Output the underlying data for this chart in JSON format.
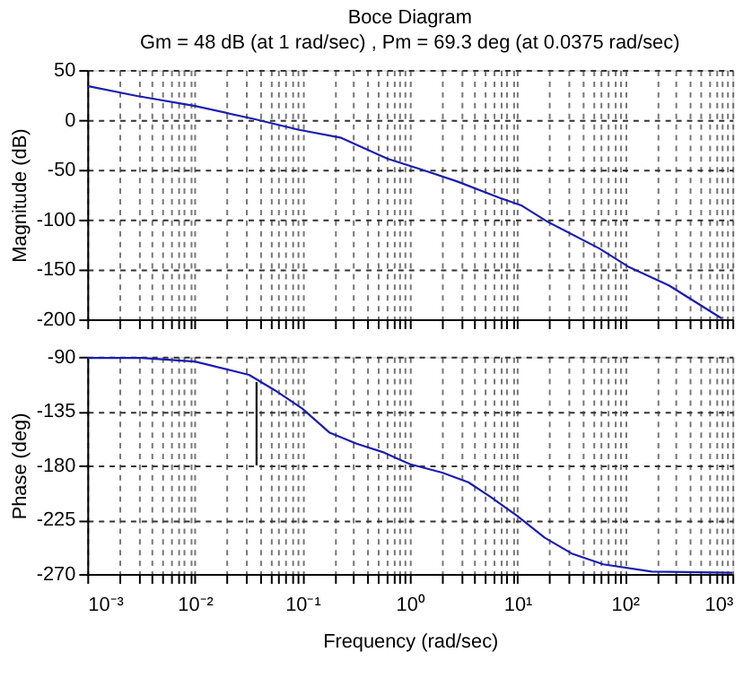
{
  "chart_data": [
    {
      "type": "line",
      "title": "Boce Diagram",
      "subtitle": "Gm = 48 dB (at 1 rad/sec) , Pm = 69.3 deg (at 0.0375 rad/sec)",
      "ylabel": "Magnitude (dB)",
      "log": "x",
      "grid": true,
      "tick_labels": "y",
      "xlim": [
        0.001,
        1000
      ],
      "xticks": [
        0.001,
        0.002,
        0.003,
        0.004,
        0.005,
        0.006,
        0.007,
        0.008,
        0.009,
        0.01,
        0.02,
        0.03,
        0.04,
        0.05,
        0.06,
        0.07,
        0.08,
        0.09,
        0.1,
        0.2,
        0.3,
        0.4,
        0.5,
        0.6,
        0.7,
        0.8,
        0.9,
        1,
        2,
        3,
        4,
        5,
        6,
        7,
        8,
        9,
        10,
        20,
        30,
        40,
        50,
        60,
        70,
        80,
        90,
        100,
        200,
        300,
        400,
        500,
        600,
        700,
        800,
        900,
        1000
      ],
      "ylim": [
        -200,
        50
      ],
      "yticks": [
        -200,
        -150,
        -100,
        -50,
        0,
        50
      ],
      "series": [
        {
          "color": "#1c1cb0",
          "x": [
            0.001,
            0.0029,
            0.01,
            0.035,
            0.093,
            0.23,
            0.62,
            1.3,
            2.8,
            6.8,
            11,
            19,
            58,
            107,
            257,
            794
          ],
          "values": [
            34,
            24,
            14,
            1,
            -10,
            -18,
            -39,
            -50,
            -62,
            -78,
            -86,
            -102,
            -129,
            -147,
            -166,
            -199
          ]
        }
      ]
    },
    {
      "type": "line",
      "xlabel": "Frequency  (rad/sec)",
      "ylabel": "Phase (deg)",
      "log": "x",
      "grid": true,
      "xlim": [
        0.001,
        1000
      ],
      "xticks": [
        {
          "value": 0.001,
          "label": "10⁻³"
        },
        {
          "value": 0.002,
          "label": null
        },
        {
          "value": 0.003,
          "label": null
        },
        {
          "value": 0.004,
          "label": null
        },
        {
          "value": 0.005,
          "label": null
        },
        {
          "value": 0.006,
          "label": null
        },
        {
          "value": 0.007,
          "label": null
        },
        {
          "value": 0.008,
          "label": null
        },
        {
          "value": 0.009,
          "label": null
        },
        {
          "value": 0.01,
          "label": "10⁻²"
        },
        {
          "value": 0.02,
          "label": null
        },
        {
          "value": 0.03,
          "label": null
        },
        {
          "value": 0.04,
          "label": null
        },
        {
          "value": 0.05,
          "label": null
        },
        {
          "value": 0.06,
          "label": null
        },
        {
          "value": 0.07,
          "label": null
        },
        {
          "value": 0.08,
          "label": null
        },
        {
          "value": 0.09,
          "label": null
        },
        {
          "value": 0.1,
          "label": "10⁻¹"
        },
        {
          "value": 0.2,
          "label": null
        },
        {
          "value": 0.3,
          "label": null
        },
        {
          "value": 0.4,
          "label": null
        },
        {
          "value": 0.5,
          "label": null
        },
        {
          "value": 0.6,
          "label": null
        },
        {
          "value": 0.7,
          "label": null
        },
        {
          "value": 0.8,
          "label": null
        },
        {
          "value": 0.9,
          "label": null
        },
        {
          "value": 1,
          "label": "10⁰"
        },
        {
          "value": 2,
          "label": null
        },
        {
          "value": 3,
          "label": null
        },
        {
          "value": 4,
          "label": null
        },
        {
          "value": 5,
          "label": null
        },
        {
          "value": 6,
          "label": null
        },
        {
          "value": 7,
          "label": null
        },
        {
          "value": 8,
          "label": null
        },
        {
          "value": 9,
          "label": null
        },
        {
          "value": 10,
          "label": "10¹"
        },
        {
          "value": 20,
          "label": null
        },
        {
          "value": 30,
          "label": null
        },
        {
          "value": 40,
          "label": null
        },
        {
          "value": 50,
          "label": null
        },
        {
          "value": 60,
          "label": null
        },
        {
          "value": 70,
          "label": null
        },
        {
          "value": 80,
          "label": null
        },
        {
          "value": 90,
          "label": null
        },
        {
          "value": 100,
          "label": "10²"
        },
        {
          "value": 200,
          "label": null
        },
        {
          "value": 300,
          "label": null
        },
        {
          "value": 400,
          "label": null
        },
        {
          "value": 500,
          "label": null
        },
        {
          "value": 600,
          "label": null
        },
        {
          "value": 700,
          "label": null
        },
        {
          "value": 800,
          "label": null
        },
        {
          "value": 900,
          "label": null
        },
        {
          "value": 1000,
          "label": "10³"
        }
      ],
      "ylim": [
        -270,
        -90
      ],
      "yticks": [
        -270,
        -225,
        -180,
        -135,
        -90
      ],
      "series": [
        {
          "color": "#1c1cb0",
          "x": [
            0.001,
            0.0032,
            0.01,
            0.032,
            0.056,
            0.1,
            0.18,
            0.32,
            0.56,
            1,
            2,
            3.5,
            5.6,
            10,
            18,
            32,
            63,
            178,
            1000
          ],
          "values": [
            -91,
            -91,
            -94,
            -105,
            -118,
            -133,
            -153,
            -162,
            -169,
            -179,
            -186,
            -194,
            -206,
            -222,
            -240,
            -253,
            -262,
            -268,
            -269
          ]
        },
        {
          "color": "#000000",
          "x": [
            0.0375,
            0.0375
          ],
          "values": [
            -180,
            -111
          ]
        }
      ]
    }
  ]
}
